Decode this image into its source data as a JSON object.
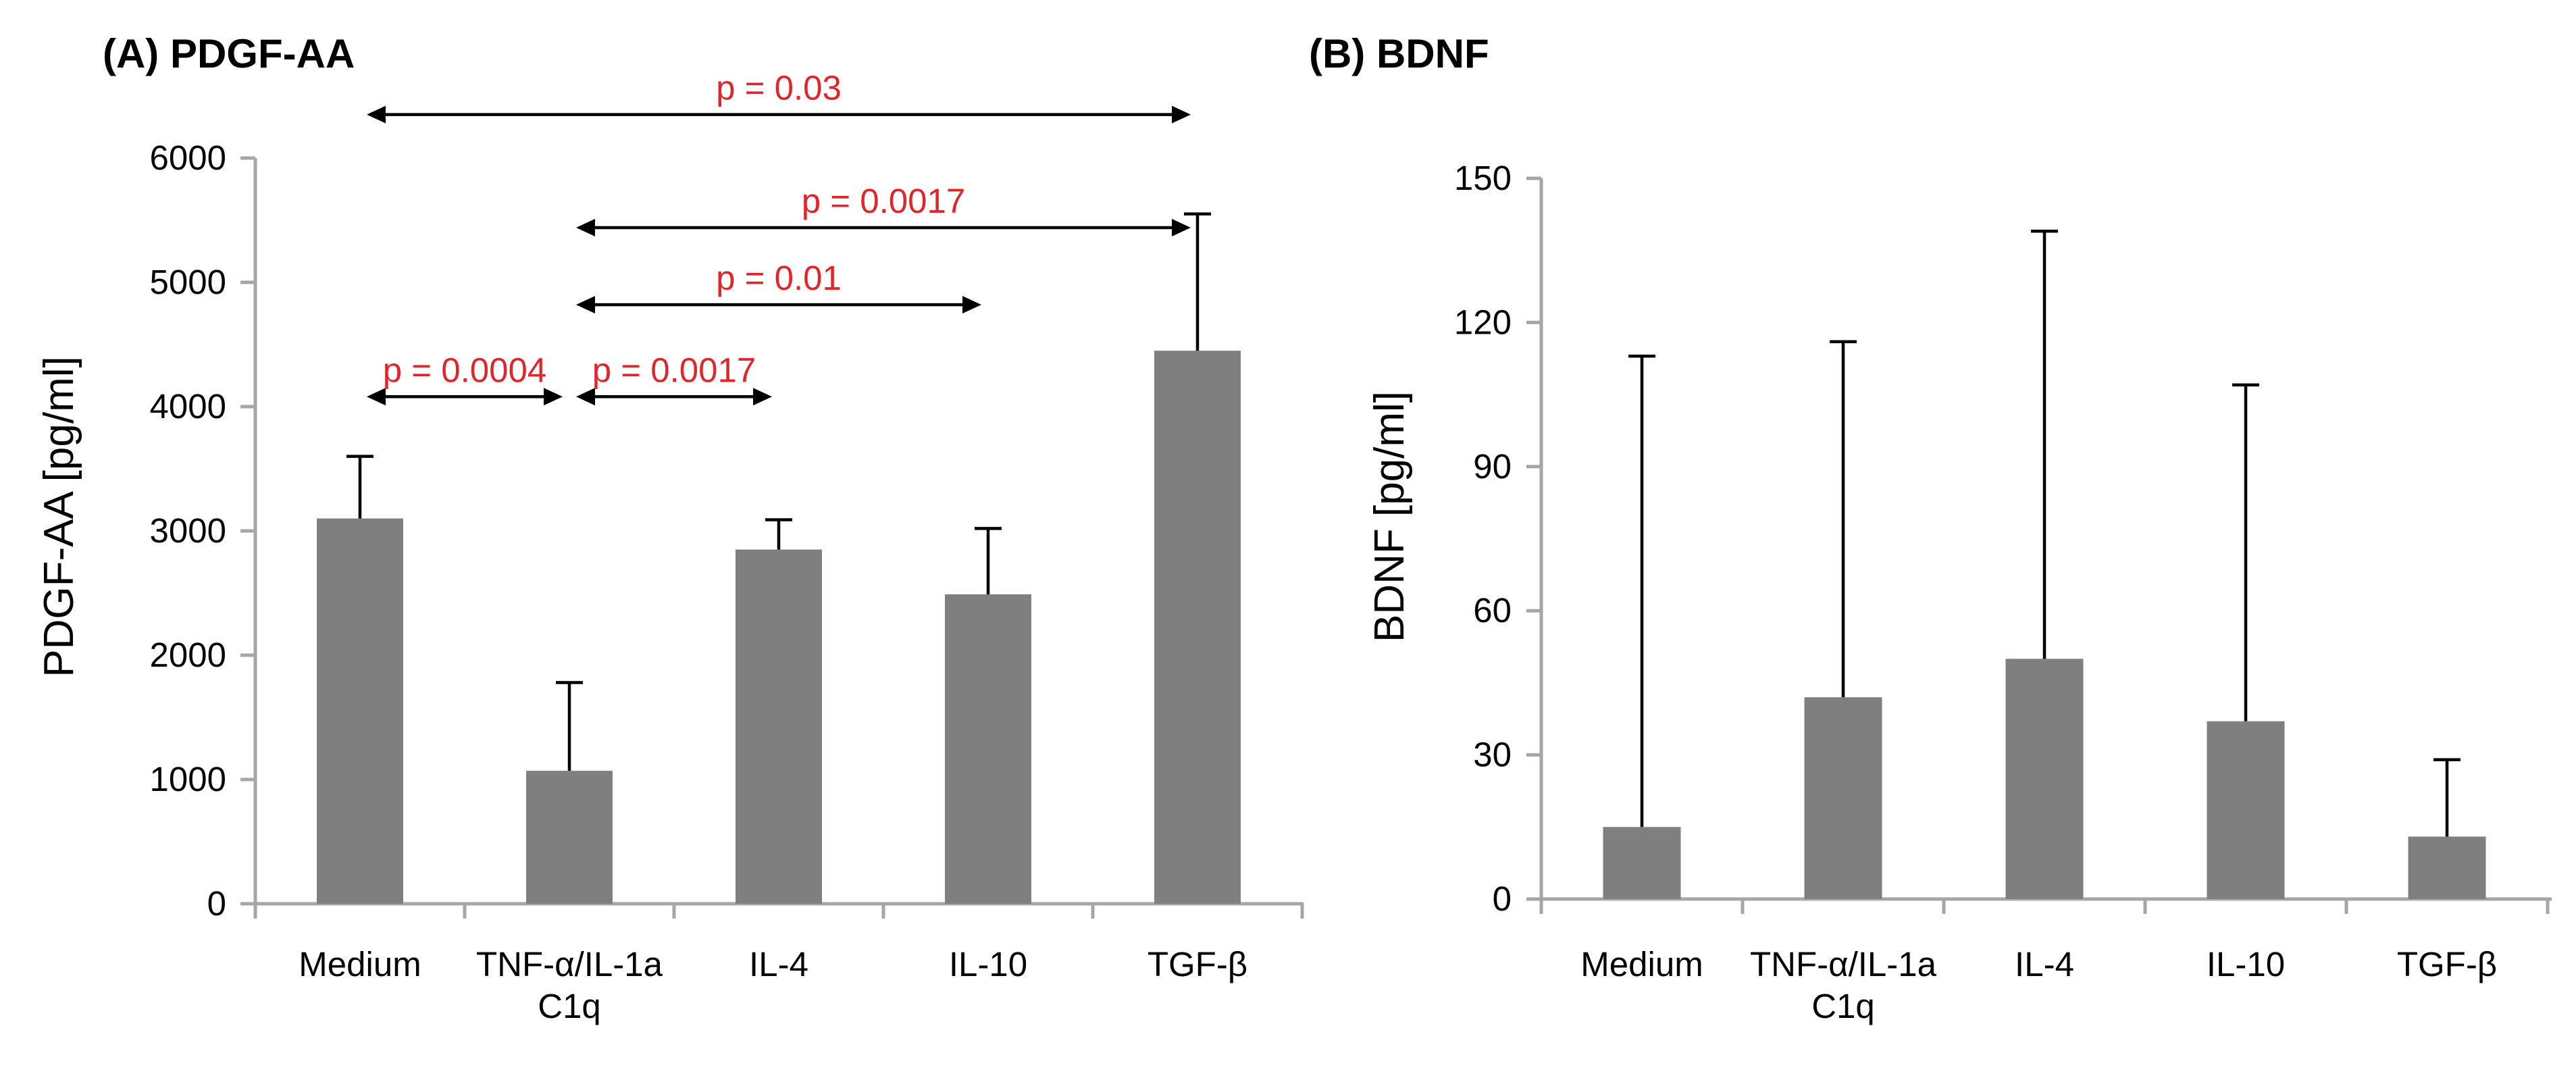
{
  "chart_data": [
    {
      "panel_title": "(A) PDGF-AA",
      "type": "bar",
      "categories": [
        "Medium",
        "TNF-α/IL-1a\nC1q",
        "IL-4",
        "IL-10",
        "TGF-β"
      ],
      "values": [
        3100,
        1070,
        2850,
        2490,
        4450
      ],
      "error_upper": [
        3600,
        1780,
        3090,
        3020,
        5550
      ],
      "ylabel": "PDGF-AA [pg/ml]",
      "ylim": [
        0,
        6000
      ],
      "yticks": [
        0,
        1000,
        2000,
        3000,
        4000,
        5000,
        6000
      ],
      "bar_color": "#7f7f7f",
      "annotation_color": "#e0262b",
      "comparisons": [
        {
          "from": 0,
          "to": 4,
          "y": 6350,
          "label": "p = 0.03"
        },
        {
          "from": 1,
          "to": 4,
          "y": 5440,
          "label": "p = 0.0017"
        },
        {
          "from": 1,
          "to": 3,
          "y": 4820,
          "label": "p = 0.01"
        },
        {
          "from": 0,
          "to": 1,
          "y": 4080,
          "label": "p = 0.0004"
        },
        {
          "from": 1,
          "to": 2,
          "y": 4080,
          "label": "p = 0.0017"
        }
      ]
    },
    {
      "panel_title": "(B) BDNF",
      "type": "bar",
      "categories": [
        "Medium",
        "TNF-α/IL-1a\nC1q",
        "IL-4",
        "IL-10",
        "TGF-β"
      ],
      "values": [
        15,
        42,
        50,
        37,
        13
      ],
      "error_upper": [
        113,
        116,
        139,
        107,
        29
      ],
      "ylabel": "BDNF [pg/ml]",
      "ylim": [
        0,
        150
      ],
      "yticks": [
        0,
        30,
        60,
        90,
        120,
        150
      ],
      "bar_color": "#7f7f7f"
    }
  ]
}
